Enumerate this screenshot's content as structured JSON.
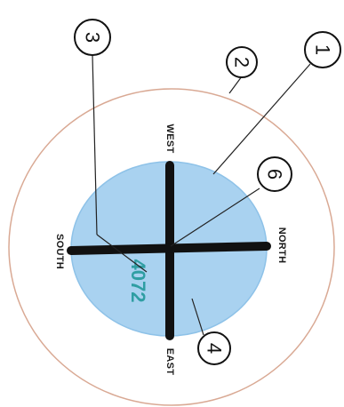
{
  "directions": {
    "west": "WEST",
    "east": "EAST",
    "north": "NORTH",
    "south": "SOUTH"
  },
  "center_value": "4072",
  "callouts": [
    "1",
    "2",
    "3",
    "4",
    "6"
  ],
  "colors": {
    "outer_ring": "#d9a994",
    "inner_fill": "#a9d2f0",
    "inner_stroke": "#8ec2e8",
    "cross": "#111111",
    "center_value": "#2f9ea3",
    "callout_line": "#222222"
  }
}
